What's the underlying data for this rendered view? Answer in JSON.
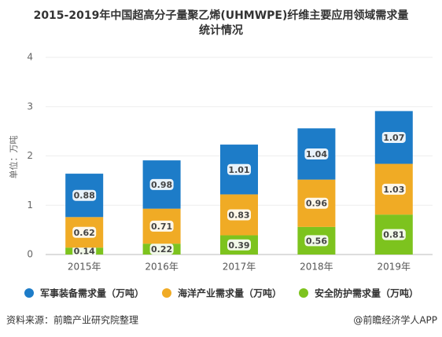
{
  "chart_data": {
    "type": "stacked_bar",
    "title": [
      "2015-2019年中国超高分子量聚乙烯(UHMWPE)纤维主要应用领域需求量",
      "统计情况"
    ],
    "y_label": "单位：万吨",
    "categories": [
      "2015年",
      "2016年",
      "2017年",
      "2018年",
      "2019年"
    ],
    "series": [
      {
        "name": "安全防护需求量（万吨）",
        "color": "#7dc31e",
        "values": [
          0.14,
          0.22,
          0.39,
          0.56,
          0.81
        ]
      },
      {
        "name": "海洋产业需求量（万吨）",
        "color": "#f0ab25",
        "values": [
          0.62,
          0.71,
          0.83,
          0.96,
          1.03
        ]
      },
      {
        "name": "军事装备需求量（万吨）",
        "color": "#1d7cc8",
        "values": [
          0.88,
          0.98,
          1.01,
          1.04,
          1.07
        ]
      }
    ],
    "legend_order": [
      2,
      1,
      0
    ],
    "ylim": [
      0,
      4
    ],
    "yticks": [
      0,
      1,
      2,
      3,
      4
    ],
    "grid": true,
    "source": "资料来源：前瞻产业研究院整理",
    "credit": "@前瞻经济学人APP"
  }
}
